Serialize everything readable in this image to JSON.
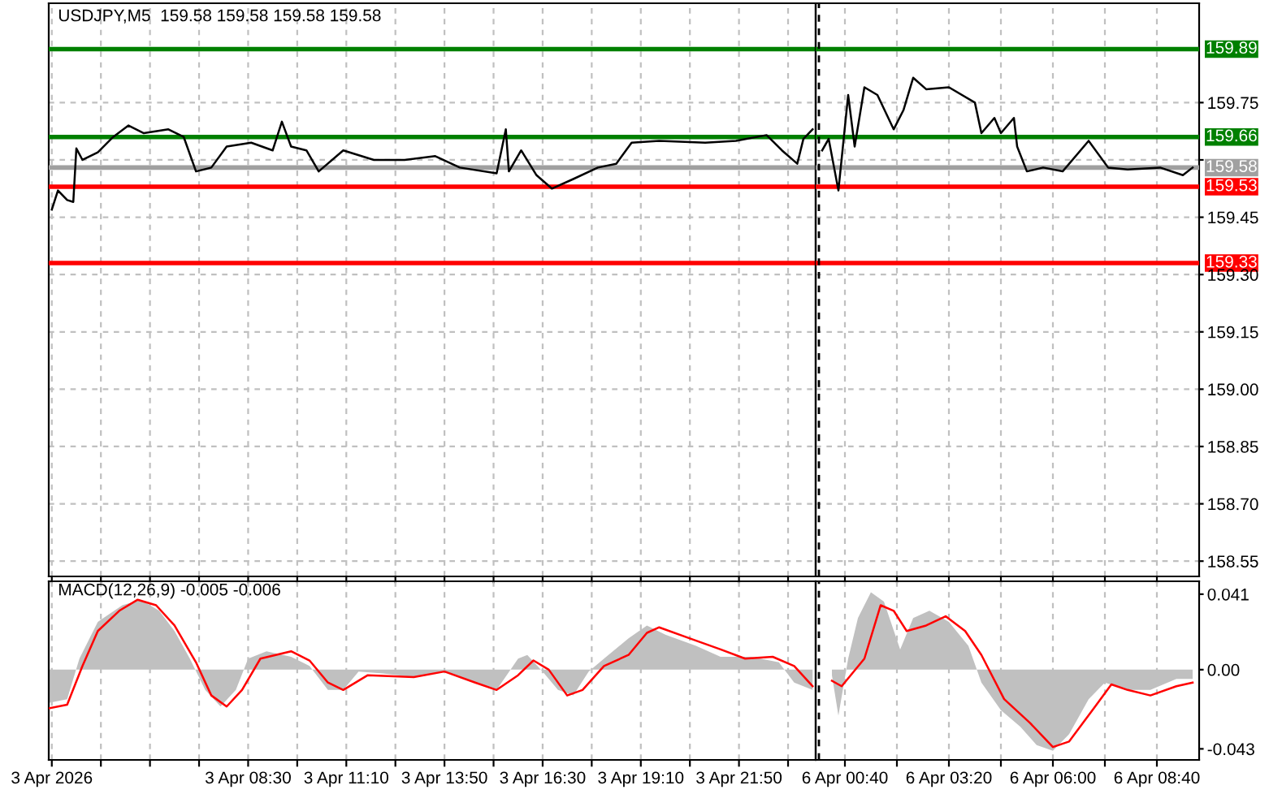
{
  "chart_data": [
    {
      "type": "line",
      "title": "USDJPY,M5  159.58 159.58 159.58 159.58",
      "xlim": [
        "2026-04-03T03:05",
        "2026-04-03T23:55"
      ],
      "xticks": [
        "2026-04-03T03:10",
        "2026-04-03T04:30",
        "2026-04-03T05:50",
        "2026-04-03T07:10",
        "2026-04-03T08:30",
        "2026-04-03T09:50",
        "2026-04-03T11:10",
        "2026-04-03T12:30",
        "2026-04-03T13:50",
        "2026-04-03T15:10",
        "2026-04-03T16:30",
        "2026-04-03T17:50",
        "2026-04-03T19:10",
        "2026-04-03T20:30",
        "2026-04-03T21:50",
        "2026-04-03T23:10"
      ],
      "ylim": [
        158.51,
        160.01
      ],
      "yticks": [
        {
          "value": 158.55,
          "label": null
        },
        {
          "value": 158.7,
          "label": null
        },
        {
          "value": 158.85,
          "label": null
        },
        {
          "value": 159.0,
          "label": null
        },
        {
          "value": 159.15,
          "label": null
        },
        {
          "value": 159.3,
          "label": null
        },
        {
          "value": 159.45,
          "label": null
        },
        {
          "value": 159.6,
          "label": null
        },
        {
          "value": 159.75,
          "label": null
        }
      ],
      "tick_labels": false,
      "grid": true,
      "series": [
        {
          "color": "#000000",
          "x": [
            "2026-04-03T03:10",
            "2026-04-03T03:20",
            "2026-04-03T03:35",
            "2026-04-03T03:45",
            "2026-04-03T03:50",
            "2026-04-03T04:00",
            "2026-04-03T04:25",
            "2026-04-03T04:50",
            "2026-04-03T05:15",
            "2026-04-03T05:40",
            "2026-04-03T06:20",
            "2026-04-03T06:45",
            "2026-04-03T07:05",
            "2026-04-03T07:30",
            "2026-04-03T07:55",
            "2026-04-03T08:35",
            "2026-04-03T09:10",
            "2026-04-03T09:25",
            "2026-04-03T09:40",
            "2026-04-03T10:05",
            "2026-04-03T10:25",
            "2026-04-03T11:05",
            "2026-04-03T11:55",
            "2026-04-03T12:45",
            "2026-04-03T13:35",
            "2026-04-03T14:15",
            "2026-04-03T15:15",
            "2026-04-03T15:30",
            "2026-04-03T15:35",
            "2026-04-03T15:55",
            "2026-04-03T16:20",
            "2026-04-03T16:45",
            "2026-04-03T17:20",
            "2026-04-03T18:00",
            "2026-04-03T18:30",
            "2026-04-03T18:55",
            "2026-04-03T19:40",
            "2026-04-03T20:55",
            "2026-04-03T21:45",
            "2026-04-03T22:35",
            "2026-04-03T23:00",
            "2026-04-03T23:25",
            "2026-04-03T23:35",
            "2026-04-03T23:50"
          ],
          "values": [
            159.47,
            159.52,
            159.495,
            159.49,
            159.63,
            159.6,
            159.62,
            159.66,
            159.69,
            159.67,
            159.68,
            159.66,
            159.57,
            159.58,
            159.635,
            159.645,
            159.625,
            159.7,
            159.635,
            159.625,
            159.57,
            159.625,
            159.6,
            159.6,
            159.61,
            159.58,
            159.565,
            159.68,
            159.57,
            159.625,
            159.56,
            159.525,
            159.55,
            159.58,
            159.59,
            159.645,
            159.65,
            159.645,
            159.65,
            159.665,
            159.625,
            159.59,
            159.655,
            159.68
          ]
        }
      ],
      "ref_lines": [
        {
          "axis": "y",
          "value": 159.89,
          "color": "#008000"
        },
        {
          "axis": "y",
          "value": 159.66,
          "color": "#008000"
        },
        {
          "axis": "y",
          "value": 159.58,
          "color": "#a0a0a0"
        },
        {
          "axis": "y",
          "value": 159.53,
          "color": "#ff0000"
        },
        {
          "axis": "y",
          "value": 159.33,
          "color": "#ff0000"
        }
      ]
    },
    {
      "type": "line",
      "xlim": [
        "2026-04-05T23:55",
        "2026-04-06T09:45"
      ],
      "xticks": [
        "2026-04-06T00:40",
        "2026-04-06T02:00",
        "2026-04-06T03:20",
        "2026-04-06T04:40",
        "2026-04-06T06:00",
        "2026-04-06T07:20",
        "2026-04-06T08:40"
      ],
      "ylim": [
        158.51,
        160.01
      ],
      "yticks": [
        {
          "value": 158.55,
          "label": "158.55"
        },
        {
          "value": 158.7,
          "label": "158.70"
        },
        {
          "value": 158.85,
          "label": "158.85"
        },
        {
          "value": 159.0,
          "label": "159.00"
        },
        {
          "value": 159.15,
          "label": "159.15"
        },
        {
          "value": 159.3,
          "label": "159.30"
        },
        {
          "value": 159.45,
          "label": "159.45"
        },
        {
          "value": 159.6,
          "label": null
        },
        {
          "value": 159.75,
          "label": "159.75"
        }
      ],
      "tick_labels": "y",
      "grid": true,
      "series": [
        {
          "color": "#000000",
          "x": [
            "2026-04-06T00:05",
            "2026-04-06T00:15",
            "2026-04-06T00:30",
            "2026-04-06T00:45",
            "2026-04-06T00:55",
            "2026-04-06T01:10",
            "2026-04-06T01:30",
            "2026-04-06T01:55",
            "2026-04-06T02:10",
            "2026-04-06T02:25",
            "2026-04-06T02:45",
            "2026-04-06T03:20",
            "2026-04-06T04:00",
            "2026-04-06T04:10",
            "2026-04-06T04:30",
            "2026-04-06T04:40",
            "2026-04-06T05:00",
            "2026-04-06T05:05",
            "2026-04-06T05:20",
            "2026-04-06T05:45",
            "2026-04-06T06:15",
            "2026-04-06T06:55",
            "2026-04-06T07:25",
            "2026-04-06T07:55",
            "2026-04-06T08:45",
            "2026-04-06T09:20",
            "2026-04-06T09:35"
          ],
          "values": [
            159.625,
            159.655,
            159.52,
            159.77,
            159.635,
            159.79,
            159.77,
            159.68,
            159.73,
            159.815,
            159.785,
            159.79,
            159.75,
            159.67,
            159.71,
            159.67,
            159.71,
            159.635,
            159.57,
            159.58,
            159.57,
            159.65,
            159.58,
            159.575,
            159.58,
            159.56,
            159.58
          ]
        }
      ],
      "ref_lines": [
        {
          "axis": "y",
          "value": 159.89,
          "label": "159.89",
          "color": "#008000"
        },
        {
          "axis": "y",
          "value": 159.66,
          "label": "159.66",
          "color": "#008000"
        },
        {
          "axis": "y",
          "value": 159.58,
          "label": "159.58",
          "color": "#a0a0a0"
        },
        {
          "axis": "y",
          "value": 159.53,
          "label": "159.53",
          "color": "#ff0000"
        },
        {
          "axis": "y",
          "value": 159.33,
          "label": "159.33",
          "color": "#ff0000"
        },
        {
          "axis": "x",
          "value": "2026-04-06T00:00",
          "color": "#000000",
          "line_style": "dashed"
        }
      ]
    },
    {
      "type": "area",
      "title": "MACD(12,26,9) -0.005 -0.006",
      "xlim": [
        "2026-04-03T03:05",
        "2026-04-03T23:55"
      ],
      "xticks": [
        {
          "value": "2026-04-03T03:10",
          "label": "3 Apr 2026"
        },
        {
          "value": "2026-04-03T04:30",
          "label": null
        },
        {
          "value": "2026-04-03T05:50",
          "label": null
        },
        {
          "value": "2026-04-03T07:10",
          "label": null
        },
        {
          "value": "2026-04-03T08:30",
          "label": "3 Apr 08:30"
        },
        {
          "value": "2026-04-03T09:50",
          "label": null
        },
        {
          "value": "2026-04-03T11:10",
          "label": "3 Apr 11:10"
        },
        {
          "value": "2026-04-03T12:30",
          "label": null
        },
        {
          "value": "2026-04-03T13:50",
          "label": "3 Apr 13:50"
        },
        {
          "value": "2026-04-03T15:10",
          "label": null
        },
        {
          "value": "2026-04-03T16:30",
          "label": "3 Apr 16:30"
        },
        {
          "value": "2026-04-03T17:50",
          "label": null
        },
        {
          "value": "2026-04-03T19:10",
          "label": "3 Apr 19:10"
        },
        {
          "value": "2026-04-03T20:30",
          "label": null
        },
        {
          "value": "2026-04-03T21:50",
          "label": "3 Apr 21:50"
        },
        {
          "value": "2026-04-03T23:10",
          "label": null
        }
      ],
      "ylim": [
        -0.049,
        0.048
      ],
      "yticks": [
        {
          "value": -0.043,
          "label": null
        },
        {
          "value": 0,
          "label": null
        },
        {
          "value": 0.041,
          "label": null
        }
      ],
      "tick_labels": "x",
      "grid": "x",
      "series": [
        {
          "color": "#c0c0c0",
          "x": [
            "2026-04-03T03:05",
            "2026-04-03T03:35",
            "2026-04-03T03:55",
            "2026-04-03T04:25",
            "2026-04-03T05:05",
            "2026-04-03T05:35",
            "2026-04-03T06:05",
            "2026-04-03T06:30",
            "2026-04-03T06:55",
            "2026-04-03T07:20",
            "2026-04-03T07:45",
            "2026-04-03T08:10",
            "2026-04-03T08:30",
            "2026-04-03T09:00",
            "2026-04-03T09:40",
            "2026-04-03T10:10",
            "2026-04-03T10:40",
            "2026-04-03T11:05",
            "2026-04-03T11:30",
            "2026-04-03T12:10",
            "2026-04-03T13:00",
            "2026-04-03T13:50",
            "2026-04-03T14:40",
            "2026-04-03T15:15",
            "2026-04-03T15:50",
            "2026-04-03T16:05",
            "2026-04-03T16:30",
            "2026-04-03T16:55",
            "2026-04-03T17:20",
            "2026-04-03T17:45",
            "2026-04-03T18:10",
            "2026-04-03T18:50",
            "2026-04-03T19:20",
            "2026-04-03T19:50",
            "2026-04-03T20:40",
            "2026-04-03T21:20",
            "2026-04-03T22:10",
            "2026-04-03T22:55",
            "2026-04-03T23:20",
            "2026-04-03T23:50"
          ],
          "values": [
            -0.018,
            -0.016,
            0.006,
            0.026,
            0.035,
            0.038,
            0.032,
            0.021,
            0.006,
            -0.011,
            -0.02,
            -0.011,
            0.006,
            0.01,
            0.007,
            0.002,
            -0.011,
            -0.011,
            -0.001,
            -0.002,
            -0.004,
            -0.001,
            -0.007,
            -0.011,
            0.006,
            0.008,
            -0.001,
            -0.011,
            -0.014,
            -0.001,
            0.006,
            0.017,
            0.024,
            0.019,
            0.013,
            0.007,
            0.007,
            0.004,
            -0.007,
            -0.011
          ]
        },
        {
          "type": "line",
          "color": "#ff0000",
          "x": [
            "2026-04-03T03:05",
            "2026-04-03T03:35",
            "2026-04-03T04:00",
            "2026-04-03T04:25",
            "2026-04-03T05:00",
            "2026-04-03T05:30",
            "2026-04-03T06:00",
            "2026-04-03T06:30",
            "2026-04-03T07:05",
            "2026-04-03T07:30",
            "2026-04-03T07:55",
            "2026-04-03T08:20",
            "2026-04-03T08:50",
            "2026-04-03T09:40",
            "2026-04-03T10:10",
            "2026-04-03T10:40",
            "2026-04-03T11:05",
            "2026-04-03T11:45",
            "2026-04-03T13:00",
            "2026-04-03T13:50",
            "2026-04-03T14:40",
            "2026-04-03T15:15",
            "2026-04-03T15:50",
            "2026-04-03T16:15",
            "2026-04-03T16:40",
            "2026-04-03T17:10",
            "2026-04-03T17:35",
            "2026-04-03T18:10",
            "2026-04-03T18:50",
            "2026-04-03T19:20",
            "2026-04-03T19:40",
            "2026-04-03T20:30",
            "2026-04-03T21:20",
            "2026-04-03T22:00",
            "2026-04-03T22:45",
            "2026-04-03T23:20",
            "2026-04-03T23:50"
          ],
          "values": [
            -0.021,
            -0.019,
            0.002,
            0.021,
            0.032,
            0.038,
            0.035,
            0.024,
            0.004,
            -0.014,
            -0.02,
            -0.011,
            0.006,
            0.01,
            0.005,
            -0.007,
            -0.011,
            -0.003,
            -0.004,
            -0.001,
            -0.007,
            -0.011,
            -0.003,
            0.005,
            0.0,
            -0.014,
            -0.011,
            0.002,
            0.008,
            0.02,
            0.023,
            0.017,
            0.011,
            0.006,
            0.007,
            0.002,
            -0.009
          ]
        }
      ]
    },
    {
      "type": "area",
      "xlim": [
        "2026-04-05T23:55",
        "2026-04-06T09:45"
      ],
      "xticks": [
        {
          "value": "2026-04-06T00:40",
          "label": "6 Apr 00:40"
        },
        {
          "value": "2026-04-06T02:00",
          "label": null
        },
        {
          "value": "2026-04-06T03:20",
          "label": "6 Apr 03:20"
        },
        {
          "value": "2026-04-06T04:40",
          "label": null
        },
        {
          "value": "2026-04-06T06:00",
          "label": "6 Apr 06:00"
        },
        {
          "value": "2026-04-06T07:20",
          "label": null
        },
        {
          "value": "2026-04-06T08:40",
          "label": "6 Apr 08:40"
        }
      ],
      "ylim": [
        -0.049,
        0.048
      ],
      "yticks": [
        {
          "value": -0.043,
          "label": "-0.043"
        },
        {
          "value": 0,
          "label": "0.00"
        },
        {
          "value": 0.041,
          "label": "0.041"
        }
      ],
      "grid": "x",
      "series": [
        {
          "color": "#c0c0c0",
          "x": [
            "2026-04-06T00:20",
            "2026-04-06T00:30",
            "2026-04-06T00:45",
            "2026-04-06T01:00",
            "2026-04-06T01:20",
            "2026-04-06T01:40",
            "2026-04-06T02:05",
            "2026-04-06T02:25",
            "2026-04-06T02:50",
            "2026-04-06T03:20",
            "2026-04-06T03:50",
            "2026-04-06T04:10",
            "2026-04-06T04:40",
            "2026-04-06T05:10",
            "2026-04-06T05:35",
            "2026-04-06T06:00",
            "2026-04-06T06:25",
            "2026-04-06T06:55",
            "2026-04-06T07:20",
            "2026-04-06T07:55",
            "2026-04-06T08:30",
            "2026-04-06T09:10",
            "2026-04-06T09:35"
          ],
          "values": [
            -0.003,
            -0.025,
            0.006,
            0.028,
            0.042,
            0.037,
            0.011,
            0.028,
            0.032,
            0.026,
            0.013,
            -0.007,
            -0.022,
            -0.031,
            -0.041,
            -0.044,
            -0.035,
            -0.016,
            -0.007,
            -0.011,
            -0.011,
            -0.005,
            -0.005
          ]
        },
        {
          "type": "line",
          "color": "#ff0000",
          "x": [
            "2026-04-06T00:20",
            "2026-04-06T00:35",
            "2026-04-06T01:10",
            "2026-04-06T01:35",
            "2026-04-06T01:55",
            "2026-04-06T02:15",
            "2026-04-06T02:45",
            "2026-04-06T03:15",
            "2026-04-06T03:45",
            "2026-04-06T04:10",
            "2026-04-06T04:45",
            "2026-04-06T05:25",
            "2026-04-06T06:00",
            "2026-04-06T06:25",
            "2026-04-06T07:05",
            "2026-04-06T07:30",
            "2026-04-06T07:55",
            "2026-04-06T08:30",
            "2026-04-06T09:10",
            "2026-04-06T09:35"
          ],
          "values": [
            -0.006,
            -0.009,
            0.006,
            0.035,
            0.032,
            0.021,
            0.024,
            0.029,
            0.021,
            0.008,
            -0.016,
            -0.029,
            -0.042,
            -0.039,
            -0.02,
            -0.008,
            -0.011,
            -0.014,
            -0.009,
            -0.007
          ]
        }
      ],
      "ref_lines": [
        {
          "axis": "x",
          "value": "2026-04-06T00:00",
          "color": "#000000",
          "line_style": "dashed"
        }
      ]
    }
  ]
}
